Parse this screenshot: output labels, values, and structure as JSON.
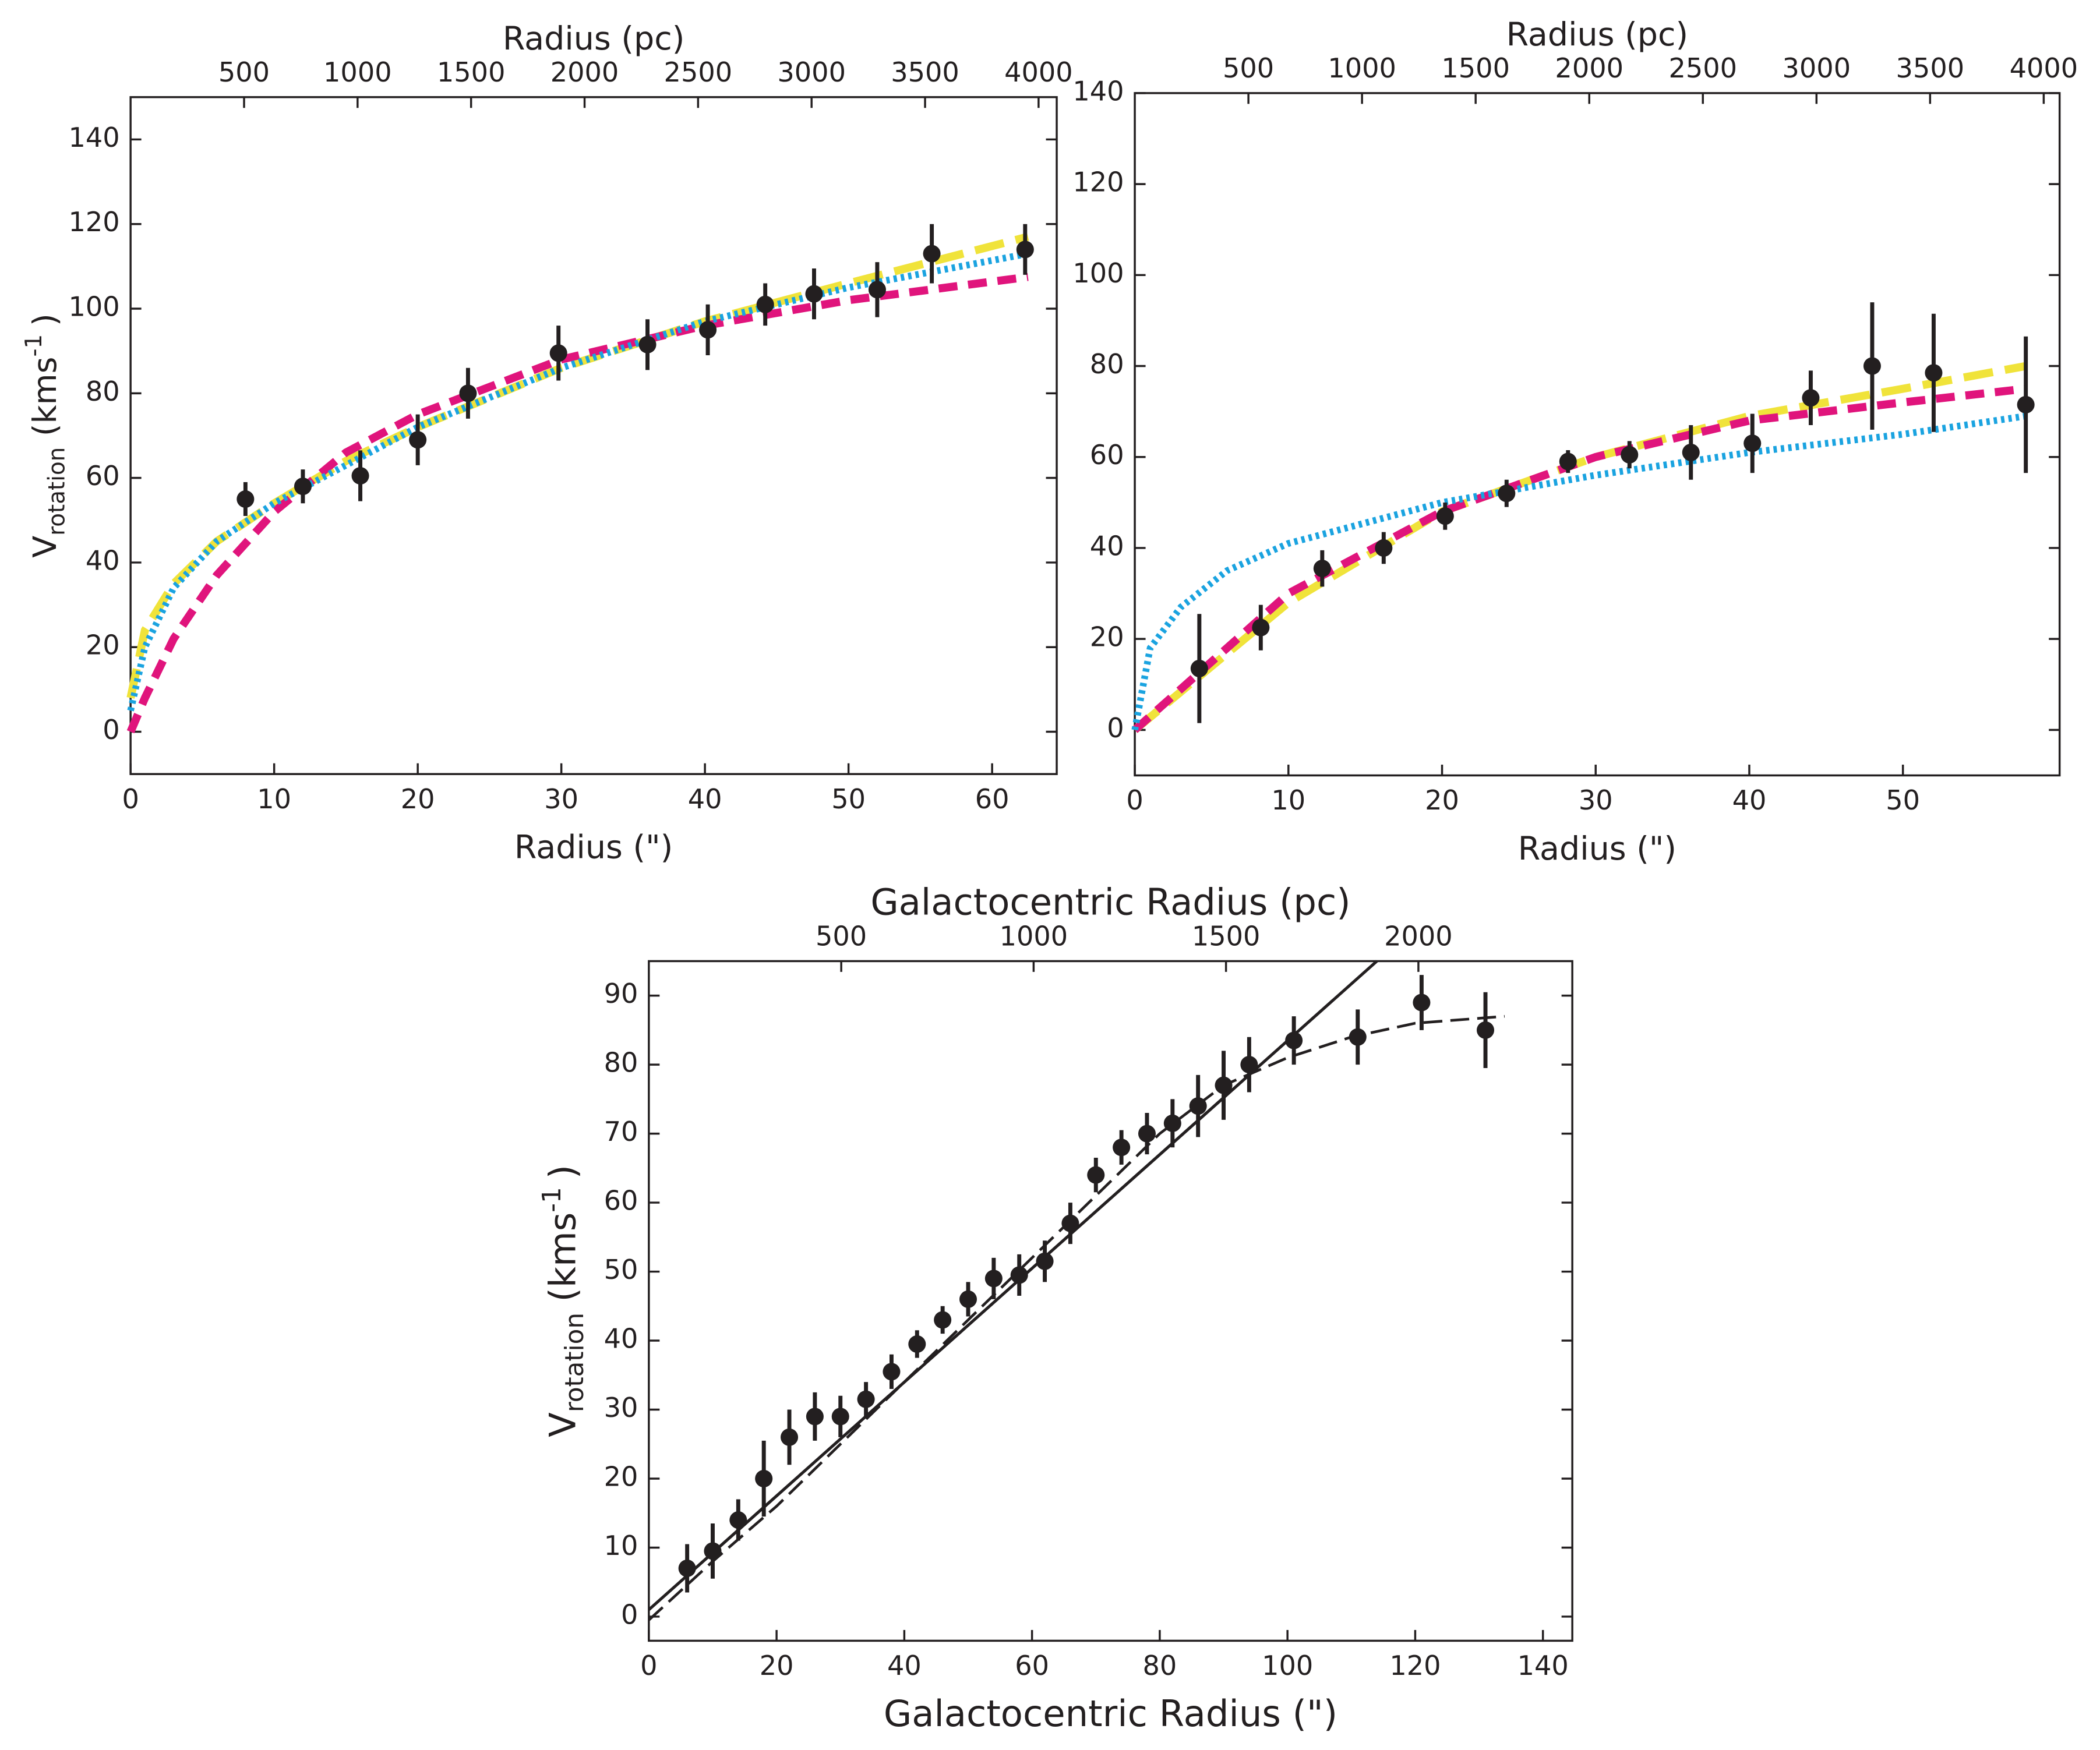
{
  "chart_data": [
    {
      "type": "scatter",
      "x_label": "Radius (\")",
      "x2_label": "Radius (pc)",
      "y_label": {
        "main": "V",
        "sub": "rotation",
        "unit": "(kms",
        "sup": "-1",
        "close": ")"
      },
      "xlim": [
        0,
        64.5
      ],
      "ylim": [
        -10,
        150
      ],
      "x2lim": [
        0,
        4080
      ],
      "xticks": [
        0,
        10,
        20,
        30,
        40,
        50,
        60
      ],
      "yticks": [
        0,
        20,
        40,
        60,
        80,
        100,
        120,
        140
      ],
      "x2ticks": [
        500,
        1000,
        1500,
        2000,
        2500,
        3000,
        3500,
        4000
      ],
      "series": [
        {
          "style": "long-dash",
          "color": "#f0e33a",
          "x": [
            0,
            1,
            3,
            6,
            10,
            15,
            20,
            30,
            40,
            50,
            62.5
          ],
          "values": [
            8,
            24,
            35,
            45,
            54,
            64,
            72,
            86,
            97,
            106,
            117
          ]
        },
        {
          "style": "dash",
          "color": "#e0147c",
          "x": [
            0,
            1,
            3,
            6,
            10,
            15,
            20,
            30,
            40,
            50,
            62.5
          ],
          "values": [
            0,
            8,
            22,
            37,
            52,
            66,
            75,
            88,
            96,
            102,
            107.5
          ]
        },
        {
          "style": "dot",
          "color": "#1aa3e0",
          "x": [
            0,
            1,
            3,
            6,
            10,
            15,
            20,
            30,
            40,
            50,
            62.5
          ],
          "values": [
            5,
            20,
            34,
            45,
            54,
            63,
            72,
            86,
            97,
            105,
            113
          ]
        },
        {
          "style": "points",
          "color": "#231f20",
          "x": [
            8,
            12,
            16,
            20,
            23.5,
            29.8,
            36,
            40.2,
            44.2,
            47.6,
            52,
            55.8,
            62.3
          ],
          "values": [
            55,
            58,
            60.5,
            69,
            80,
            89.5,
            91.5,
            95,
            101,
            103.5,
            104.5,
            113,
            114
          ],
          "errors": [
            4,
            4,
            6,
            6,
            6,
            6.5,
            6,
            6,
            5,
            6,
            6.5,
            7,
            6
          ]
        }
      ]
    },
    {
      "type": "scatter",
      "x_label": "Radius (\")",
      "x2_label": "Radius (pc)",
      "y_label": null,
      "xlim": [
        0,
        60.2
      ],
      "ylim": [
        -10,
        140
      ],
      "x2lim": [
        0,
        4070
      ],
      "xticks": [
        0,
        10,
        20,
        30,
        40,
        50
      ],
      "yticks": [
        0,
        20,
        40,
        60,
        80,
        100,
        120,
        140
      ],
      "x2ticks": [
        500,
        1000,
        1500,
        2000,
        2500,
        3000,
        3500,
        4000
      ],
      "series": [
        {
          "style": "long-dash",
          "color": "#f0e33a",
          "x": [
            0,
            10,
            20,
            30,
            40,
            50,
            58
          ],
          "values": [
            0,
            28,
            48,
            60,
            69,
            75,
            80
          ]
        },
        {
          "style": "dash",
          "color": "#e0147c",
          "x": [
            0,
            10,
            20,
            30,
            40,
            50,
            58
          ],
          "values": [
            0,
            30,
            48,
            60,
            68,
            72,
            75
          ]
        },
        {
          "style": "dot",
          "color": "#1aa3e0",
          "x": [
            0,
            1,
            3,
            6,
            10,
            20,
            30,
            40,
            50,
            58
          ],
          "values": [
            0,
            18,
            27,
            35,
            41,
            50,
            56,
            61,
            65,
            69
          ]
        },
        {
          "style": "points",
          "color": "#231f20",
          "x": [
            4.2,
            8.2,
            12.2,
            16.2,
            20.2,
            24.2,
            28.2,
            32.2,
            36.2,
            40.2,
            44,
            48,
            52,
            58
          ],
          "values": [
            13.5,
            22.5,
            35.5,
            40,
            47,
            52,
            59,
            60.5,
            61,
            63,
            73,
            80,
            78.5,
            71.5
          ],
          "errors": [
            12,
            5,
            4,
            3.5,
            3,
            3,
            2.5,
            3,
            6,
            6.5,
            6,
            14,
            13,
            15
          ]
        }
      ]
    },
    {
      "type": "scatter",
      "x_label": "Galactocentric Radius (\")",
      "x2_label": "Galactocentric Radius (pc)",
      "y_label": {
        "main": "V",
        "sub": "rotation",
        "unit": "(kms",
        "sup": "-1",
        "close": ")"
      },
      "xlim": [
        0,
        144.6
      ],
      "ylim": [
        -3.5,
        95
      ],
      "x2lim": [
        0,
        2400
      ],
      "xticks": [
        0,
        20,
        40,
        60,
        80,
        100,
        120,
        140
      ],
      "yticks": [
        0,
        10,
        20,
        30,
        40,
        50,
        60,
        70,
        80,
        90
      ],
      "x2ticks": [
        500,
        1000,
        1500,
        2000
      ],
      "series": [
        {
          "style": "solid",
          "color": "#231f20",
          "x": [
            0,
            114
          ],
          "values": [
            1,
            95
          ]
        },
        {
          "style": "dash-thin",
          "color": "#231f20",
          "x": [
            0,
            10,
            20,
            40,
            60,
            80,
            90,
            100,
            110,
            120,
            134
          ],
          "values": [
            -0.5,
            8,
            16,
            34,
            52,
            70,
            77,
            81,
            84,
            86,
            87
          ]
        },
        {
          "style": "points",
          "color": "#231f20",
          "x": [
            6,
            10,
            14,
            18,
            22,
            26,
            30,
            34,
            38,
            42,
            46,
            50,
            54,
            58,
            62,
            66,
            70,
            74,
            78,
            82,
            86,
            90,
            94,
            101,
            111,
            121,
            131
          ],
          "values": [
            7,
            9.5,
            14,
            20,
            26,
            29,
            29,
            31.5,
            35.5,
            39.5,
            43,
            46,
            49,
            49.5,
            51.5,
            57,
            64,
            68,
            70,
            71.5,
            74,
            77,
            80,
            83.5,
            84,
            89,
            85
          ],
          "errors": [
            3.5,
            4,
            3,
            5.5,
            4,
            3.5,
            3,
            2.5,
            2.5,
            2,
            2,
            2.5,
            3,
            3,
            3,
            3,
            2.5,
            2.5,
            3,
            3.5,
            4.5,
            5,
            4,
            3.5,
            4,
            4,
            5.5
          ]
        }
      ]
    }
  ]
}
